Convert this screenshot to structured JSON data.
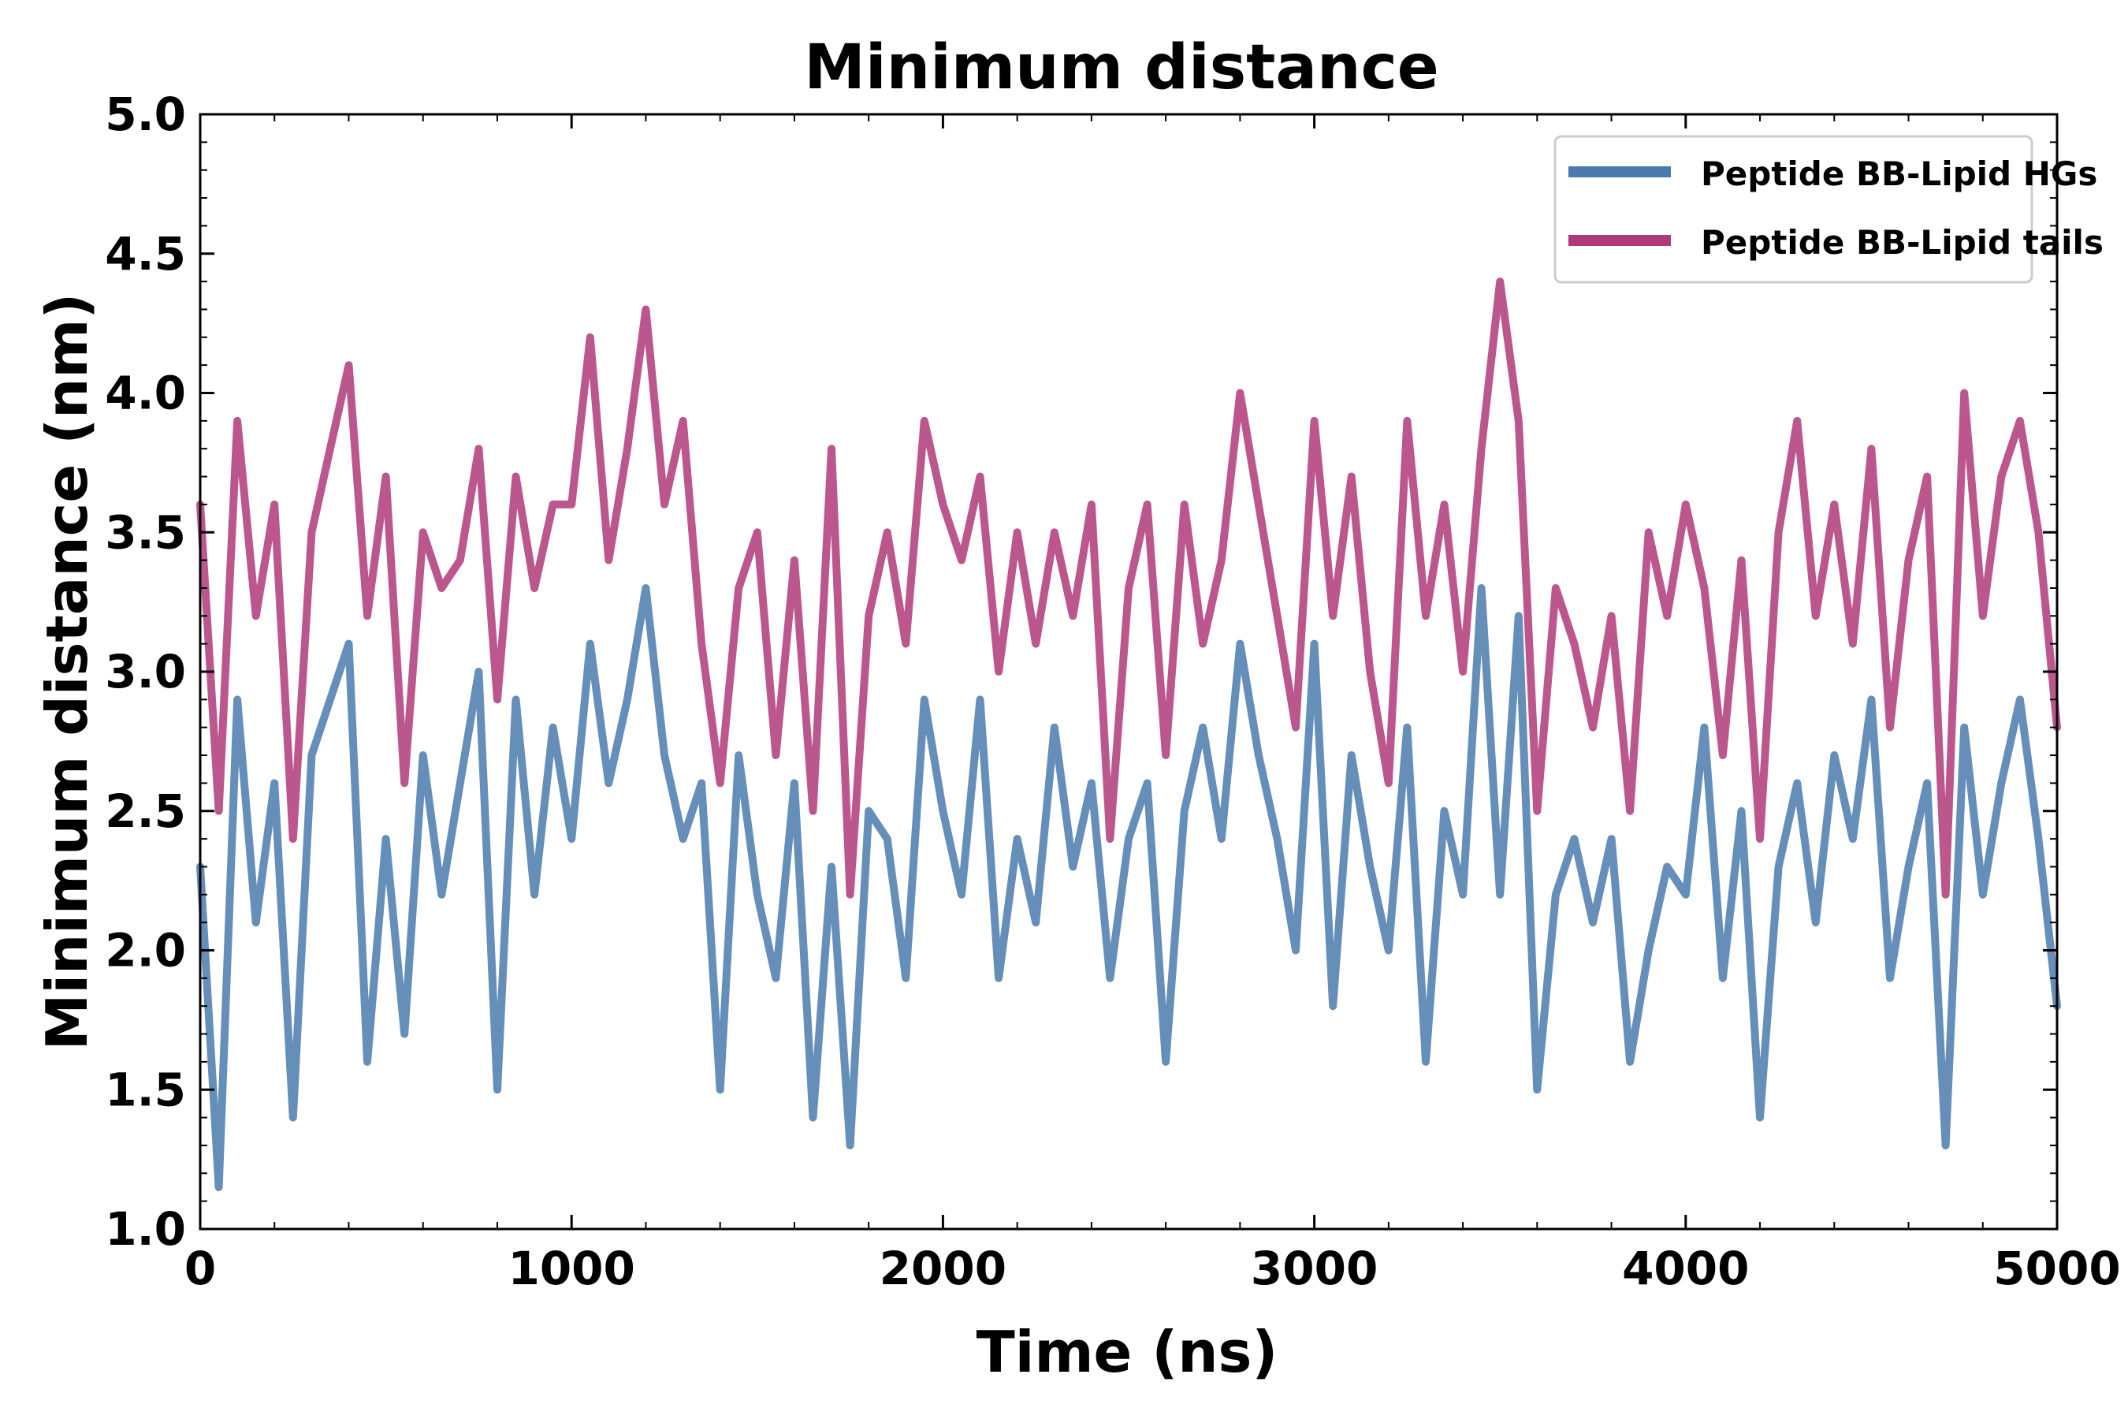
{
  "chart_data": {
    "type": "line",
    "title": "Minimum distance",
    "xlabel": "Time (ns)",
    "ylabel": "Minimum distance (nm)",
    "xlim": [
      0,
      5000
    ],
    "ylim": [
      1.0,
      5.0
    ],
    "xticks": [
      0,
      1000,
      2000,
      3000,
      4000,
      5000
    ],
    "xtick_labels": [
      "0",
      "1000",
      "2000",
      "3000",
      "4000",
      "5000"
    ],
    "yticks": [
      1.0,
      1.5,
      2.0,
      2.5,
      3.0,
      3.5,
      4.0,
      4.5,
      5.0
    ],
    "ytick_labels": [
      "1.0",
      "1.5",
      "2.0",
      "2.5",
      "3.0",
      "3.5",
      "4.0",
      "4.5",
      "5.0"
    ],
    "grid": false,
    "legend_position": "top-right",
    "x": [
      0,
      50,
      100,
      150,
      200,
      250,
      300,
      350,
      400,
      450,
      500,
      550,
      600,
      650,
      700,
      750,
      800,
      850,
      900,
      950,
      1000,
      1050,
      1100,
      1150,
      1200,
      1250,
      1300,
      1350,
      1400,
      1450,
      1500,
      1550,
      1600,
      1650,
      1700,
      1750,
      1800,
      1850,
      1900,
      1950,
      2000,
      2050,
      2100,
      2150,
      2200,
      2250,
      2300,
      2350,
      2400,
      2450,
      2500,
      2550,
      2600,
      2650,
      2700,
      2750,
      2800,
      2850,
      2900,
      2950,
      3000,
      3050,
      3100,
      3150,
      3200,
      3250,
      3300,
      3350,
      3400,
      3450,
      3500,
      3550,
      3600,
      3650,
      3700,
      3750,
      3800,
      3850,
      3900,
      3950,
      4000,
      4050,
      4100,
      4150,
      4200,
      4250,
      4300,
      4350,
      4400,
      4450,
      4500,
      4550,
      4600,
      4650,
      4700,
      4750,
      4800,
      4850,
      4900,
      4950,
      5000
    ],
    "series": [
      {
        "name": "Peptide BB-Lipid HGs",
        "color": "#4a7aad",
        "values": [
          2.3,
          1.15,
          2.9,
          2.1,
          2.6,
          1.4,
          2.7,
          2.9,
          3.1,
          1.6,
          2.4,
          1.7,
          2.7,
          2.2,
          2.6,
          3.0,
          1.5,
          2.9,
          2.2,
          2.8,
          2.4,
          3.1,
          2.6,
          2.9,
          3.3,
          2.7,
          2.4,
          2.6,
          1.5,
          2.7,
          2.2,
          1.9,
          2.6,
          1.4,
          2.3,
          1.3,
          2.5,
          2.4,
          1.9,
          2.9,
          2.5,
          2.2,
          2.9,
          1.9,
          2.4,
          2.1,
          2.8,
          2.3,
          2.6,
          1.9,
          2.4,
          2.6,
          1.6,
          2.5,
          2.8,
          2.4,
          3.1,
          2.7,
          2.4,
          2.0,
          3.1,
          1.8,
          2.7,
          2.3,
          2.0,
          2.8,
          1.6,
          2.5,
          2.2,
          3.3,
          2.2,
          3.2,
          1.5,
          2.2,
          2.4,
          2.1,
          2.4,
          1.6,
          2.0,
          2.3,
          2.2,
          2.8,
          1.9,
          2.5,
          1.4,
          2.3,
          2.6,
          2.1,
          2.7,
          2.4,
          2.9,
          1.9,
          2.3,
          2.6,
          1.3,
          2.8,
          2.2,
          2.6,
          2.9,
          2.4,
          1.8
        ]
      },
      {
        "name": "Peptide BB-Lipid tails",
        "color": "#b0397a",
        "values": [
          3.6,
          2.5,
          3.9,
          3.2,
          3.6,
          2.4,
          3.5,
          3.8,
          4.1,
          3.2,
          3.7,
          2.6,
          3.5,
          3.3,
          3.4,
          3.8,
          2.9,
          3.7,
          3.3,
          3.6,
          3.6,
          4.2,
          3.4,
          3.8,
          4.3,
          3.6,
          3.9,
          3.1,
          2.6,
          3.3,
          3.5,
          2.7,
          3.4,
          2.5,
          3.8,
          2.2,
          3.2,
          3.5,
          3.1,
          3.9,
          3.6,
          3.4,
          3.7,
          3.0,
          3.5,
          3.1,
          3.5,
          3.2,
          3.6,
          2.4,
          3.3,
          3.6,
          2.7,
          3.6,
          3.1,
          3.4,
          4.0,
          3.6,
          3.2,
          2.8,
          3.9,
          3.2,
          3.7,
          3.0,
          2.6,
          3.9,
          3.2,
          3.6,
          3.0,
          3.8,
          4.4,
          3.9,
          2.5,
          3.3,
          3.1,
          2.8,
          3.2,
          2.5,
          3.5,
          3.2,
          3.6,
          3.3,
          2.7,
          3.4,
          2.4,
          3.5,
          3.9,
          3.2,
          3.6,
          3.1,
          3.8,
          2.8,
          3.4,
          3.7,
          2.2,
          4.0,
          3.2,
          3.7,
          3.9,
          3.5,
          2.8
        ]
      }
    ]
  }
}
